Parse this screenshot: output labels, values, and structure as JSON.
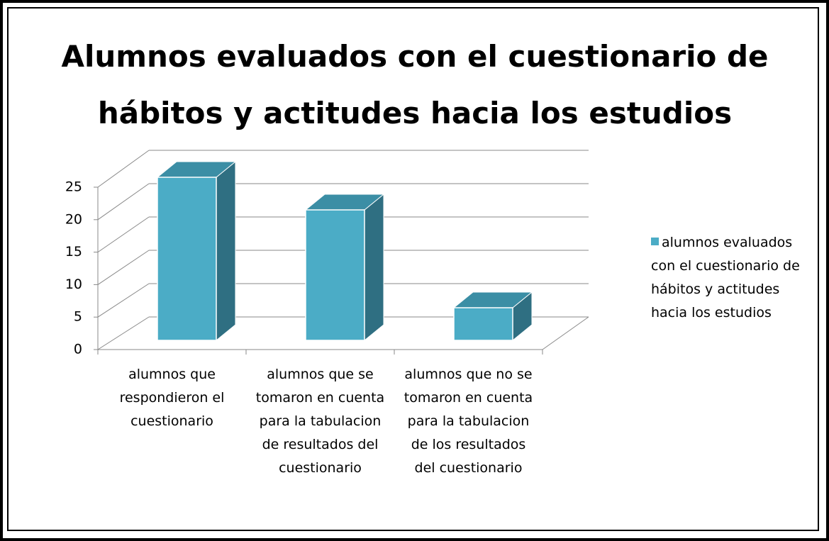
{
  "chart_data": {
    "type": "bar3d",
    "title": "Alumnos evaluados con el cuestionario de hábitos y actitudes hacia los estudios",
    "categories": [
      "alumnos que respondieron el cuestionario",
      "alumnos que se tomaron en cuenta para la tabulacion de resultados del cuestionario",
      "alumnos que no se tomaron en cuenta para la tabulacion de los resultados del cuestionario"
    ],
    "series": [
      {
        "name": "alumnos evaluados con el cuestionario de hábitos y actitudes hacia los estudios",
        "color": "#4bacc6",
        "values": [
          25,
          20,
          5
        ]
      }
    ],
    "ylim": [
      0,
      25
    ],
    "yticks": [
      0,
      5,
      10,
      15,
      20,
      25
    ],
    "grid": true,
    "legend": "right"
  }
}
